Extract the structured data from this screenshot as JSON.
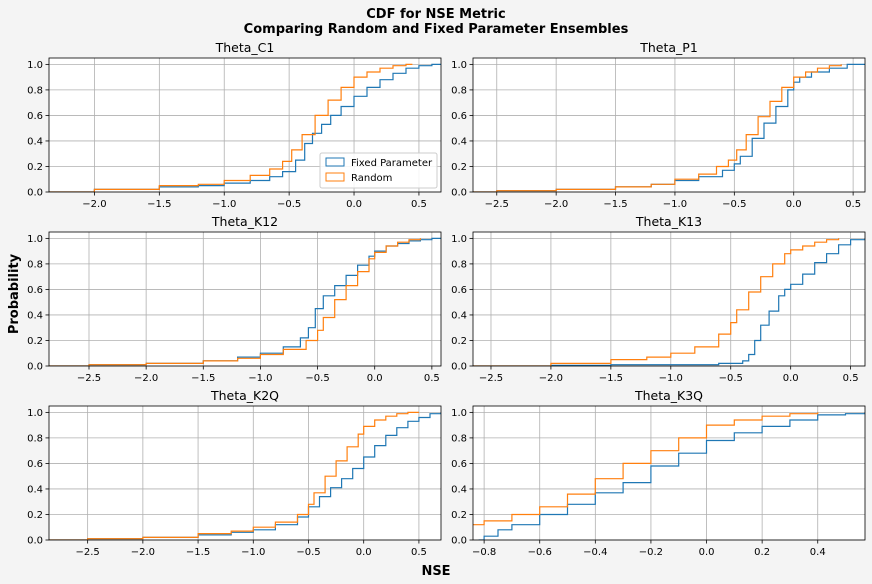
{
  "figure": {
    "title_line1": "CDF for NSE Metric",
    "title_line2": "Comparing Random and Fixed Parameter Ensembles",
    "xlabel": "NSE",
    "ylabel": "Probability"
  },
  "legend": {
    "fixed_label": "Fixed Parameter",
    "random_label": "Random",
    "location": "lower-right of first panel"
  },
  "colors": {
    "fixed": "#1f77b4",
    "random": "#ff7f0e",
    "grid": "#b0b0b0",
    "background": "#f4f4f4"
  },
  "chart_data": [
    {
      "type": "line",
      "title": "Theta_C1",
      "xlim": [
        -2.35,
        0.67
      ],
      "ylim": [
        0,
        1.05
      ],
      "xticks": [
        -2.0,
        -1.5,
        -1.0,
        -0.5,
        0.0,
        0.5
      ],
      "xtick_labels": [
        "−2.0",
        "−1.5",
        "−1.0",
        "−0.5",
        "0.0",
        "0.5"
      ],
      "yticks": [
        0.0,
        0.2,
        0.4,
        0.6,
        0.8,
        1.0
      ],
      "ytick_labels": [
        "0.0",
        "0.2",
        "0.4",
        "0.6",
        "0.8",
        "1.0"
      ],
      "grid": true,
      "series": [
        {
          "name": "Fixed Parameter",
          "x": [
            -2.35,
            -2.0,
            -1.5,
            -1.2,
            -1.0,
            -0.8,
            -0.65,
            -0.55,
            -0.45,
            -0.38,
            -0.32,
            -0.25,
            -0.18,
            -0.1,
            0.0,
            0.1,
            0.2,
            0.3,
            0.4,
            0.5,
            0.6,
            0.67
          ],
          "y": [
            0.0,
            0.02,
            0.04,
            0.05,
            0.07,
            0.09,
            0.12,
            0.16,
            0.25,
            0.38,
            0.46,
            0.53,
            0.6,
            0.67,
            0.75,
            0.82,
            0.88,
            0.93,
            0.97,
            0.99,
            1.0,
            1.0
          ]
        },
        {
          "name": "Random",
          "x": [
            -2.35,
            -2.0,
            -1.5,
            -1.2,
            -1.0,
            -0.8,
            -0.65,
            -0.55,
            -0.48,
            -0.4,
            -0.3,
            -0.2,
            -0.1,
            0.0,
            0.1,
            0.2,
            0.3,
            0.4,
            0.45
          ],
          "y": [
            0.0,
            0.02,
            0.05,
            0.06,
            0.09,
            0.13,
            0.18,
            0.24,
            0.33,
            0.45,
            0.6,
            0.72,
            0.82,
            0.9,
            0.94,
            0.97,
            0.99,
            1.0,
            1.0
          ]
        }
      ]
    },
    {
      "type": "line",
      "title": "Theta_P1",
      "xlim": [
        -2.7,
        0.6
      ],
      "ylim": [
        0,
        1.05
      ],
      "xticks": [
        -2.5,
        -2.0,
        -1.5,
        -1.0,
        -0.5,
        0.0,
        0.5
      ],
      "xtick_labels": [
        "−2.5",
        "−2.0",
        "−1.5",
        "−1.0",
        "−0.5",
        "0.0",
        "0.5"
      ],
      "yticks": [
        0.0,
        0.2,
        0.4,
        0.6,
        0.8,
        1.0
      ],
      "ytick_labels": [
        "0.0",
        "0.2",
        "0.4",
        "0.6",
        "0.8",
        "1.0"
      ],
      "grid": true,
      "series": [
        {
          "name": "Fixed Parameter",
          "x": [
            -2.7,
            -2.5,
            -2.0,
            -1.5,
            -1.2,
            -1.0,
            -0.8,
            -0.6,
            -0.5,
            -0.45,
            -0.35,
            -0.25,
            -0.15,
            -0.05,
            0.0,
            0.05,
            0.15,
            0.3,
            0.45,
            0.6
          ],
          "y": [
            0.0,
            0.01,
            0.02,
            0.04,
            0.06,
            0.09,
            0.12,
            0.17,
            0.22,
            0.28,
            0.42,
            0.54,
            0.67,
            0.8,
            0.86,
            0.9,
            0.94,
            0.97,
            1.0,
            1.0
          ]
        },
        {
          "name": "Random",
          "x": [
            -2.7,
            -2.5,
            -2.0,
            -1.5,
            -1.2,
            -1.0,
            -0.8,
            -0.65,
            -0.55,
            -0.48,
            -0.4,
            -0.3,
            -0.2,
            -0.1,
            0.0,
            0.1,
            0.2,
            0.3,
            0.4
          ],
          "y": [
            0.0,
            0.01,
            0.02,
            0.04,
            0.06,
            0.1,
            0.14,
            0.2,
            0.25,
            0.33,
            0.45,
            0.59,
            0.71,
            0.82,
            0.9,
            0.94,
            0.97,
            0.99,
            1.0
          ]
        }
      ]
    },
    {
      "type": "line",
      "title": "Theta_K12",
      "xlim": [
        -2.85,
        0.58
      ],
      "ylim": [
        0,
        1.05
      ],
      "xticks": [
        -2.5,
        -2.0,
        -1.5,
        -1.0,
        -0.5,
        0.0,
        0.5
      ],
      "xtick_labels": [
        "−2.5",
        "−2.0",
        "−1.5",
        "−1.0",
        "−0.5",
        "0.0",
        "0.5"
      ],
      "yticks": [
        0.0,
        0.2,
        0.4,
        0.6,
        0.8,
        1.0
      ],
      "ytick_labels": [
        "0.0",
        "0.2",
        "0.4",
        "0.6",
        "0.8",
        "1.0"
      ],
      "grid": true,
      "series": [
        {
          "name": "Fixed Parameter",
          "x": [
            -2.85,
            -2.5,
            -2.0,
            -1.5,
            -1.2,
            -1.0,
            -0.8,
            -0.65,
            -0.58,
            -0.52,
            -0.45,
            -0.35,
            -0.25,
            -0.15,
            -0.05,
            0.0,
            0.1,
            0.2,
            0.3,
            0.4,
            0.5,
            0.58
          ],
          "y": [
            0.0,
            0.01,
            0.02,
            0.04,
            0.07,
            0.1,
            0.15,
            0.22,
            0.3,
            0.45,
            0.55,
            0.63,
            0.71,
            0.79,
            0.86,
            0.9,
            0.94,
            0.96,
            0.98,
            0.99,
            1.0,
            1.0
          ]
        },
        {
          "name": "Random",
          "x": [
            -2.85,
            -2.5,
            -2.0,
            -1.5,
            -1.2,
            -1.0,
            -0.8,
            -0.6,
            -0.5,
            -0.45,
            -0.35,
            -0.25,
            -0.15,
            -0.05,
            0.0,
            0.1,
            0.2,
            0.3,
            0.4
          ],
          "y": [
            0.0,
            0.01,
            0.02,
            0.04,
            0.06,
            0.09,
            0.13,
            0.2,
            0.28,
            0.38,
            0.52,
            0.63,
            0.74,
            0.84,
            0.89,
            0.94,
            0.97,
            0.99,
            1.0
          ]
        }
      ]
    },
    {
      "type": "line",
      "title": "Theta_K13",
      "xlim": [
        -2.65,
        0.62
      ],
      "ylim": [
        0,
        1.05
      ],
      "xticks": [
        -2.5,
        -2.0,
        -1.5,
        -1.0,
        -0.5,
        0.0,
        0.5
      ],
      "xtick_labels": [
        "−2.5",
        "−2.0",
        "−1.5",
        "−1.0",
        "−0.5",
        "0.0",
        "0.5"
      ],
      "yticks": [
        0.0,
        0.2,
        0.4,
        0.6,
        0.8,
        1.0
      ],
      "ytick_labels": [
        "0.0",
        "0.2",
        "0.4",
        "0.6",
        "0.8",
        "1.0"
      ],
      "grid": true,
      "series": [
        {
          "name": "Fixed Parameter",
          "x": [
            -2.65,
            -2.0,
            -1.5,
            -1.0,
            -0.6,
            -0.4,
            -0.35,
            -0.3,
            -0.25,
            -0.18,
            -0.1,
            -0.05,
            0.0,
            0.1,
            0.2,
            0.3,
            0.4,
            0.5,
            0.62
          ],
          "y": [
            0.0,
            0.005,
            0.01,
            0.01,
            0.02,
            0.04,
            0.09,
            0.2,
            0.32,
            0.43,
            0.55,
            0.6,
            0.64,
            0.72,
            0.81,
            0.88,
            0.95,
            0.99,
            1.0
          ]
        },
        {
          "name": "Random",
          "x": [
            -2.65,
            -2.0,
            -1.5,
            -1.2,
            -1.0,
            -0.8,
            -0.6,
            -0.5,
            -0.45,
            -0.35,
            -0.25,
            -0.15,
            -0.05,
            0.0,
            0.1,
            0.2,
            0.3,
            0.4
          ],
          "y": [
            0.0,
            0.02,
            0.05,
            0.07,
            0.1,
            0.15,
            0.25,
            0.34,
            0.44,
            0.58,
            0.7,
            0.8,
            0.88,
            0.91,
            0.94,
            0.97,
            0.99,
            1.0
          ]
        }
      ]
    },
    {
      "type": "line",
      "title": "Theta_K2Q",
      "xlim": [
        -2.85,
        0.7
      ],
      "ylim": [
        0,
        1.05
      ],
      "xticks": [
        -2.5,
        -2.0,
        -1.5,
        -1.0,
        -0.5,
        0.0,
        0.5
      ],
      "xtick_labels": [
        "−2.5",
        "−2.0",
        "−1.5",
        "−1.0",
        "−0.5",
        "0.0",
        "0.5"
      ],
      "yticks": [
        0.0,
        0.2,
        0.4,
        0.6,
        0.8,
        1.0
      ],
      "ytick_labels": [
        "0.0",
        "0.2",
        "0.4",
        "0.6",
        "0.8",
        "1.0"
      ],
      "grid": true,
      "series": [
        {
          "name": "Fixed Parameter",
          "x": [
            -2.85,
            -2.5,
            -2.0,
            -1.5,
            -1.2,
            -1.0,
            -0.8,
            -0.6,
            -0.5,
            -0.4,
            -0.3,
            -0.2,
            -0.1,
            0.0,
            0.1,
            0.2,
            0.3,
            0.4,
            0.5,
            0.6,
            0.7
          ],
          "y": [
            0.0,
            0.01,
            0.02,
            0.04,
            0.06,
            0.08,
            0.12,
            0.18,
            0.26,
            0.34,
            0.41,
            0.48,
            0.56,
            0.65,
            0.74,
            0.82,
            0.88,
            0.93,
            0.96,
            0.99,
            1.0
          ]
        },
        {
          "name": "Random",
          "x": [
            -2.85,
            -2.5,
            -2.0,
            -1.5,
            -1.2,
            -1.0,
            -0.8,
            -0.6,
            -0.5,
            -0.45,
            -0.35,
            -0.25,
            -0.15,
            -0.05,
            0.0,
            0.1,
            0.2,
            0.3,
            0.4,
            0.5
          ],
          "y": [
            0.0,
            0.01,
            0.02,
            0.05,
            0.07,
            0.1,
            0.14,
            0.2,
            0.28,
            0.37,
            0.5,
            0.62,
            0.73,
            0.83,
            0.89,
            0.94,
            0.97,
            0.99,
            1.0,
            1.0
          ]
        }
      ]
    },
    {
      "type": "line",
      "title": "Theta_K3Q",
      "xlim": [
        -0.84,
        0.57
      ],
      "ylim": [
        0,
        1.05
      ],
      "xticks": [
        -0.8,
        -0.6,
        -0.4,
        -0.2,
        0.0,
        0.2,
        0.4
      ],
      "xtick_labels": [
        "−0.8",
        "−0.6",
        "−0.4",
        "−0.2",
        "0.0",
        "0.2",
        "0.4"
      ],
      "yticks": [
        0.0,
        0.2,
        0.4,
        0.6,
        0.8,
        1.0
      ],
      "ytick_labels": [
        "0.0",
        "0.2",
        "0.4",
        "0.6",
        "0.8",
        "1.0"
      ],
      "grid": true,
      "series": [
        {
          "name": "Fixed Parameter",
          "x": [
            -0.82,
            -0.8,
            -0.75,
            -0.7,
            -0.6,
            -0.5,
            -0.4,
            -0.3,
            -0.2,
            -0.1,
            0.0,
            0.1,
            0.2,
            0.3,
            0.4,
            0.5,
            0.57
          ],
          "y": [
            0.0,
            0.03,
            0.08,
            0.12,
            0.2,
            0.28,
            0.37,
            0.45,
            0.58,
            0.68,
            0.78,
            0.84,
            0.89,
            0.94,
            0.98,
            0.99,
            1.0
          ]
        },
        {
          "name": "Random",
          "x": [
            -0.84,
            -0.8,
            -0.7,
            -0.6,
            -0.5,
            -0.4,
            -0.3,
            -0.2,
            -0.1,
            0.0,
            0.1,
            0.2,
            0.3,
            0.4
          ],
          "y": [
            0.12,
            0.15,
            0.2,
            0.26,
            0.36,
            0.48,
            0.6,
            0.7,
            0.8,
            0.9,
            0.94,
            0.97,
            0.99,
            1.0
          ]
        }
      ]
    }
  ]
}
